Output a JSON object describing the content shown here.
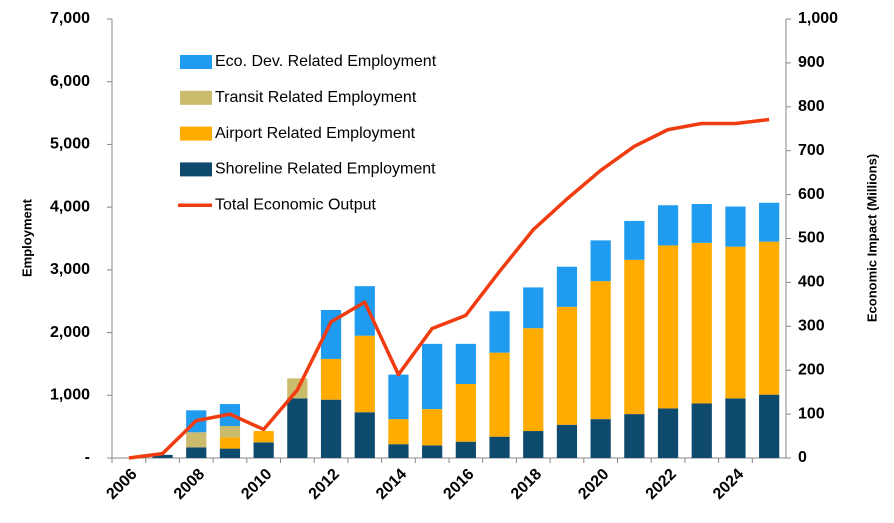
{
  "chart_data": {
    "type": "bar",
    "categories": [
      "2006",
      null,
      "2008",
      null,
      "2010",
      null,
      "2012",
      null,
      "2014",
      null,
      "2016",
      null,
      "2018",
      null,
      "2020",
      null,
      "2022",
      null,
      "2024",
      null
    ],
    "series": [
      {
        "name": "Shoreline Related  Employment",
        "color": "#0e4a6e",
        "type": "bar",
        "values": [
          0,
          50,
          170,
          150,
          250,
          950,
          930,
          730,
          220,
          200,
          260,
          340,
          430,
          530,
          620,
          700,
          790,
          870,
          950,
          1010
        ]
      },
      {
        "name": "Airport Related Employment",
        "color": "#ffab00",
        "type": "bar",
        "values": [
          0,
          0,
          0,
          180,
          180,
          0,
          650,
          1220,
          400,
          580,
          920,
          1340,
          1640,
          1880,
          2200,
          2460,
          2600,
          2560,
          2420,
          2440
        ]
      },
      {
        "name": "Transit Related Employment",
        "color": "#cbbb6c",
        "type": "bar",
        "values": [
          0,
          0,
          240,
          180,
          0,
          320,
          0,
          0,
          0,
          0,
          0,
          0,
          0,
          0,
          0,
          0,
          0,
          0,
          0,
          0
        ]
      },
      {
        "name": "Eco. Dev. Related Employment",
        "color": "#1f9bf0",
        "type": "bar",
        "values": [
          0,
          0,
          350,
          350,
          0,
          0,
          780,
          790,
          710,
          1040,
          640,
          660,
          650,
          640,
          650,
          620,
          640,
          620,
          640,
          620
        ]
      },
      {
        "name": "Total Economic Output",
        "color": "#f03c10",
        "type": "line",
        "axis": "y2",
        "values": [
          0,
          10,
          85,
          100,
          65,
          155,
          310,
          355,
          190,
          295,
          325,
          425,
          520,
          590,
          655,
          710,
          748,
          762,
          762,
          771
        ]
      }
    ],
    "ylabel": "Employment",
    "y2label": "Economic Impact (Millions)",
    "ylim": [
      0,
      7000
    ],
    "yticks": [
      {
        "value": 0,
        "label": "-"
      },
      {
        "value": 1000,
        "label": "1,000"
      },
      {
        "value": 2000,
        "label": "2,000"
      },
      {
        "value": 3000,
        "label": "3,000"
      },
      {
        "value": 4000,
        "label": "4,000"
      },
      {
        "value": 5000,
        "label": "5,000"
      },
      {
        "value": 6000,
        "label": "6,000"
      },
      {
        "value": 7000,
        "label": "7,000"
      }
    ],
    "y2lim": [
      0,
      1000
    ],
    "y2ticks": [
      0,
      100,
      200,
      300,
      400,
      500,
      600,
      700,
      800,
      900,
      {
        "value": 1000,
        "label": "1,000"
      }
    ],
    "legend_order": [
      3,
      2,
      1,
      0,
      4
    ]
  }
}
